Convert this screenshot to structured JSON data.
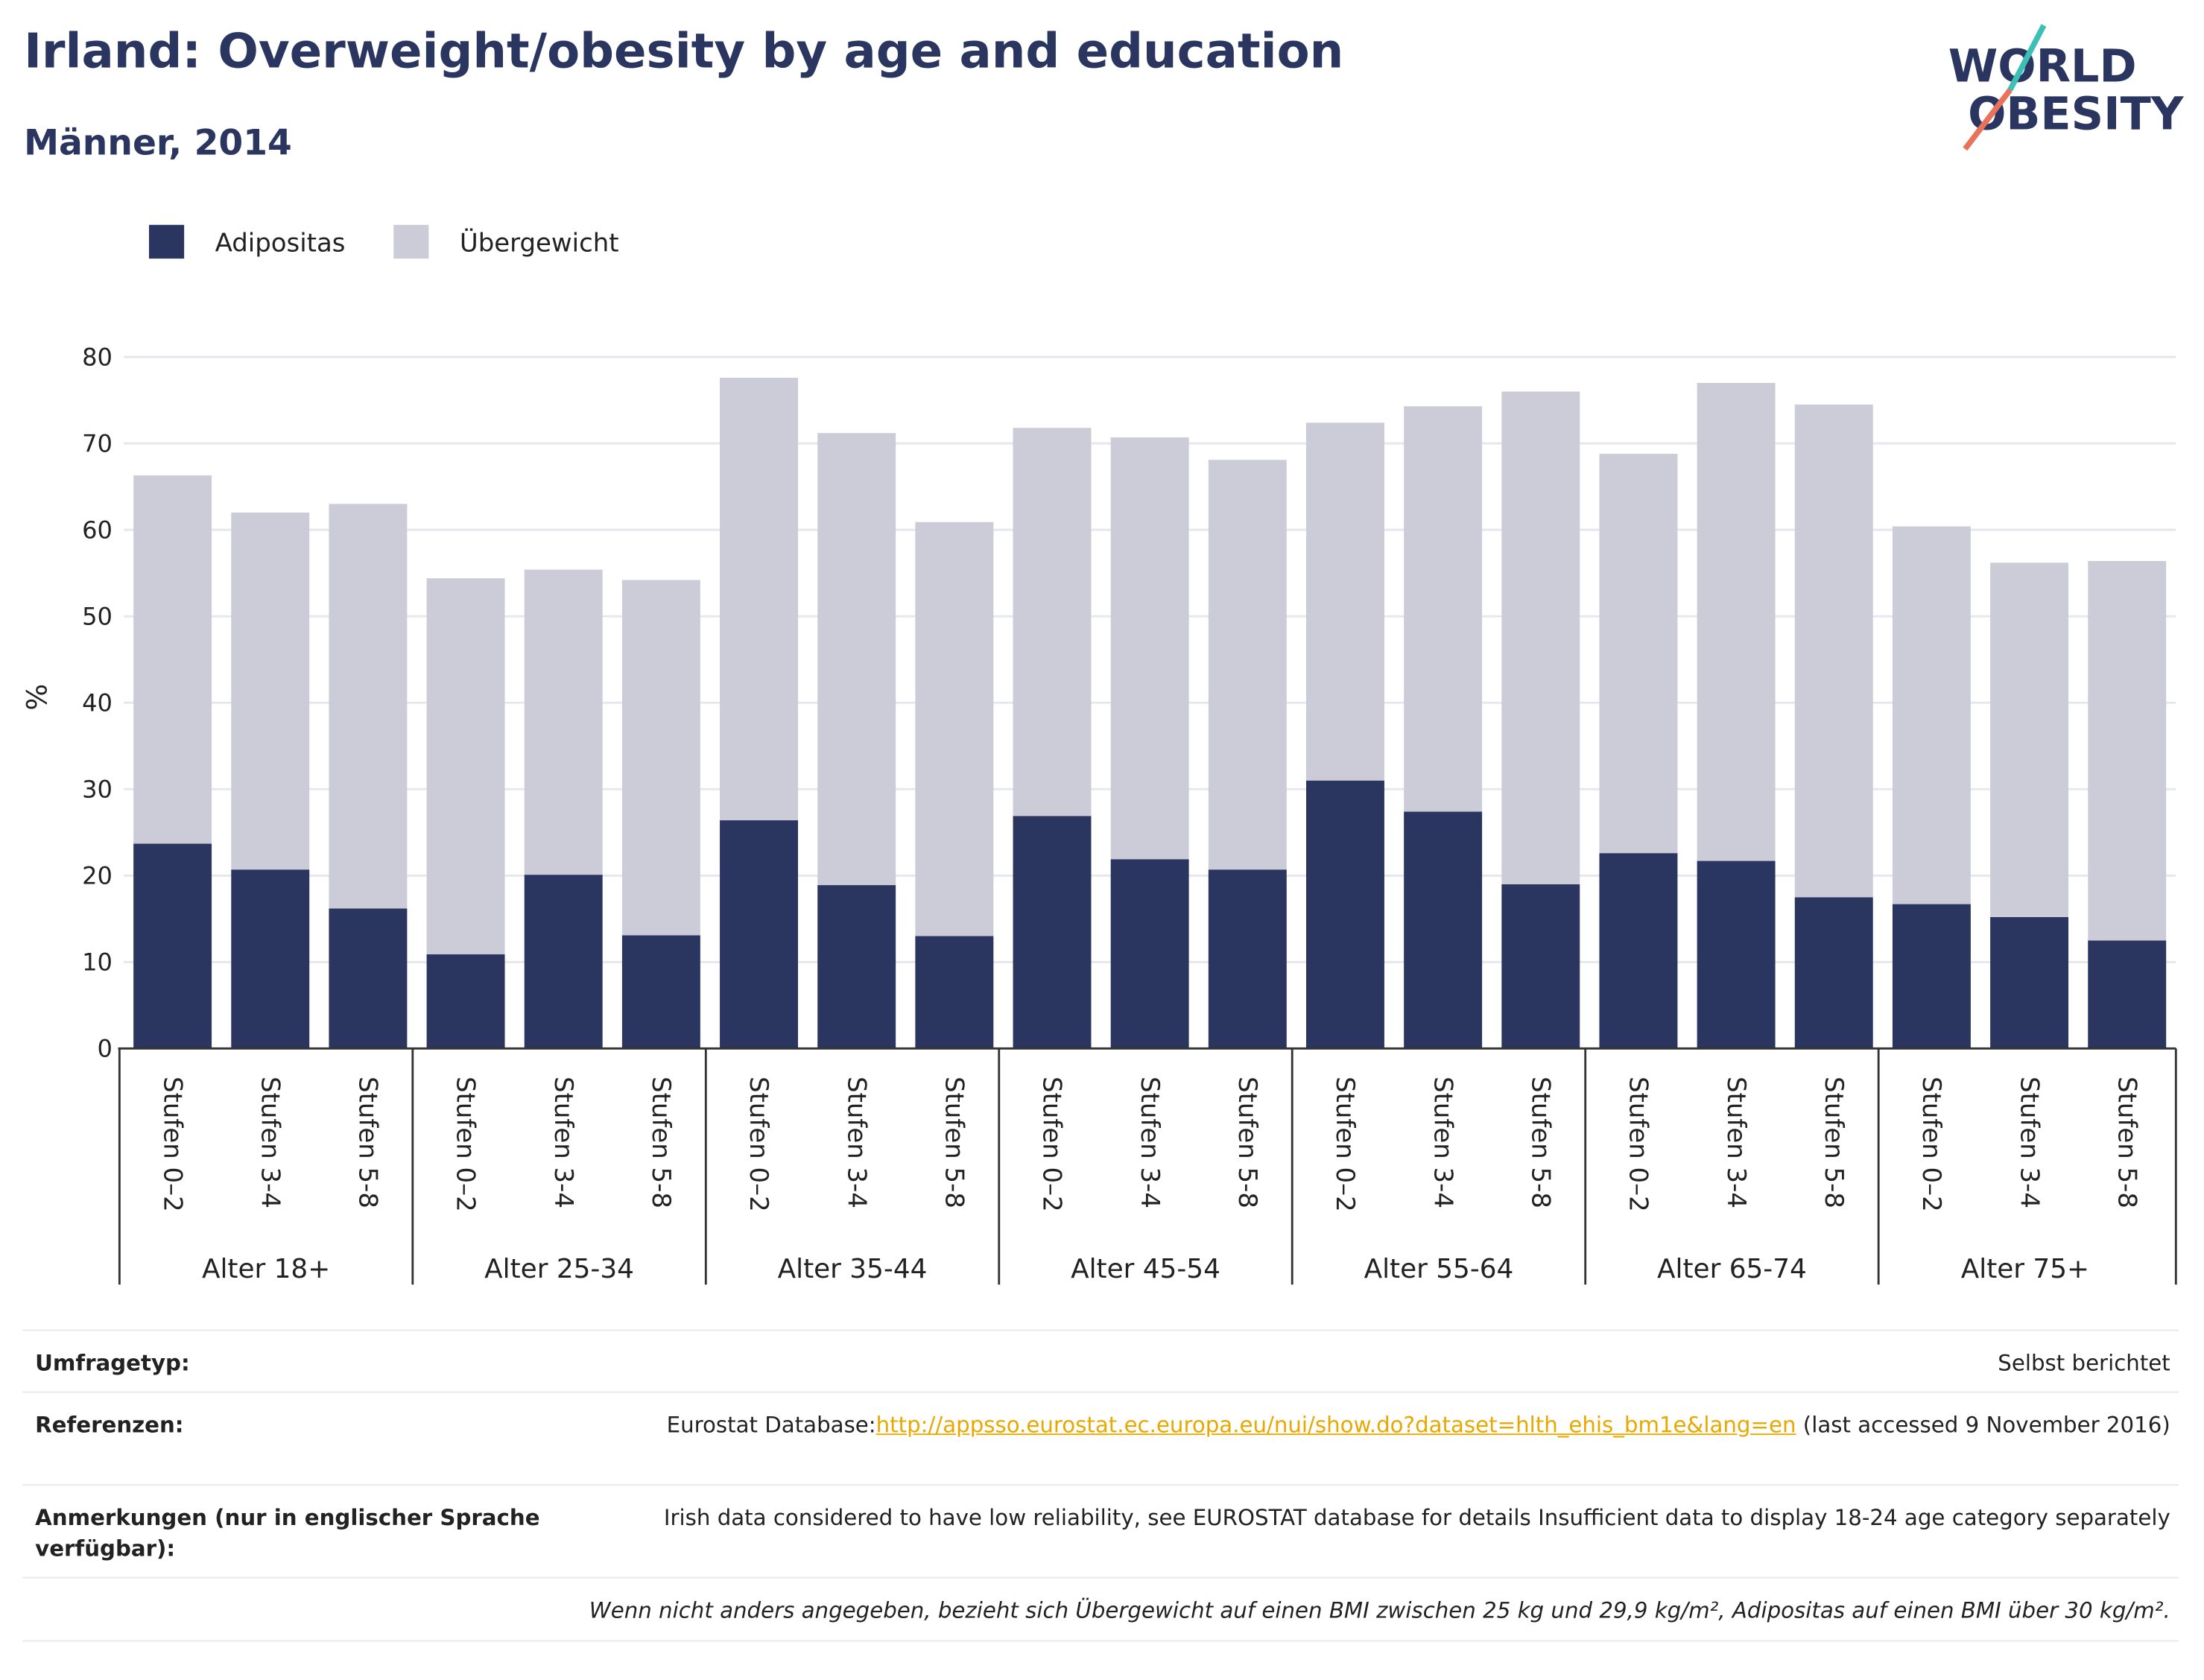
{
  "chart_data": {
    "type": "stacked_bar",
    "title": "Irland: Overweight/obesity by age and education",
    "subtitle": "Männer, 2014",
    "logo": [
      "WORLD",
      "OBESITY"
    ],
    "ylabel": "%",
    "groups": [
      "Alter 18+",
      "Alter 25-34",
      "Alter 35-44",
      "Alter 45-54",
      "Alter 55-64",
      "Alter 65-74",
      "Alter 75+"
    ],
    "categories": [
      "Stufen 0–2",
      "Stufen 3-4",
      "Stufen 5-8",
      "Stufen 0–2",
      "Stufen 3-4",
      "Stufen 5-8",
      "Stufen 0–2",
      "Stufen 3-4",
      "Stufen 5-8",
      "Stufen 0–2",
      "Stufen 3-4",
      "Stufen 5-8",
      "Stufen 0–2",
      "Stufen 3-4",
      "Stufen 5-8",
      "Stufen 0–2",
      "Stufen 3-4",
      "Stufen 5-8",
      "Stufen 0–2",
      "Stufen 3-4",
      "Stufen 5-8"
    ],
    "series": [
      {
        "name": "Adipositas",
        "color": "#2a3560",
        "values": [
          23.7,
          20.7,
          16.2,
          10.9,
          20.1,
          13.1,
          26.4,
          18.9,
          13.0,
          26.9,
          21.9,
          20.7,
          31.0,
          27.4,
          19.0,
          22.6,
          21.7,
          17.5,
          16.7,
          15.2,
          12.5
        ]
      },
      {
        "name": "Übergewicht",
        "color": "#cbccd8",
        "values": [
          42.6,
          41.3,
          46.8,
          43.5,
          35.3,
          41.1,
          51.2,
          52.3,
          47.9,
          44.9,
          48.8,
          47.4,
          41.4,
          46.9,
          57.0,
          46.2,
          55.3,
          57.0,
          43.7,
          41.0,
          43.9
        ]
      }
    ],
    "ylim": [
      0,
      80
    ],
    "yticks": [
      0,
      10,
      20,
      30,
      40,
      50,
      60,
      70,
      80
    ],
    "grid": true
  },
  "footer": {
    "rows": [
      {
        "label": "Umfragetyp:",
        "value": "Selbst berichtet"
      },
      {
        "label": "Referenzen:",
        "value": "Eurostat Database:",
        "link": "http://appsso.eurostat.ec.europa.eu/nui/show.do?dataset=hlth_ehis_bm1e&lang=en",
        "after": " (last accessed 9 November 2016)"
      },
      {
        "label": "Anmerkungen (nur in englischer Sprache verfügbar):",
        "value": "Irish data considered to have low reliability, see EUROSTAT database for details Insufficient data to display 18-24 age category separately"
      }
    ],
    "note": "Wenn nicht anders angegeben, bezieht sich Übergewicht auf einen BMI zwischen 25 kg und 29,9 kg/m², Adipositas auf einen BMI über 30 kg/m²."
  }
}
